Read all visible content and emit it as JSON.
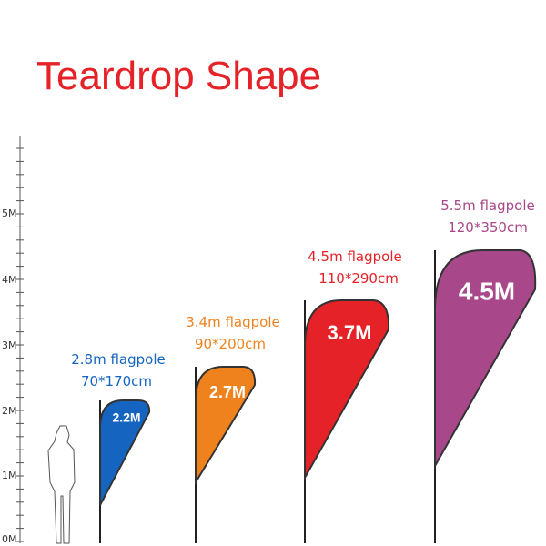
{
  "header": {
    "title": "Teardrop Shape"
  },
  "scale": {
    "labels": [
      "0M",
      "1M",
      "2M",
      "3M",
      "4M",
      "5M"
    ]
  },
  "flags": [
    {
      "label": "2.2M",
      "pole": "2.8m flagpole",
      "size": "70*170cm"
    },
    {
      "label": "2.7M",
      "pole": "3.4m flagpole",
      "size": "90*200cm"
    },
    {
      "label": "3.7M",
      "pole": "4.5m flagpole",
      "size": "110*290cm"
    },
    {
      "label": "4.5M",
      "pole": "5.5m flagpole",
      "size": "120*350cm"
    }
  ]
}
